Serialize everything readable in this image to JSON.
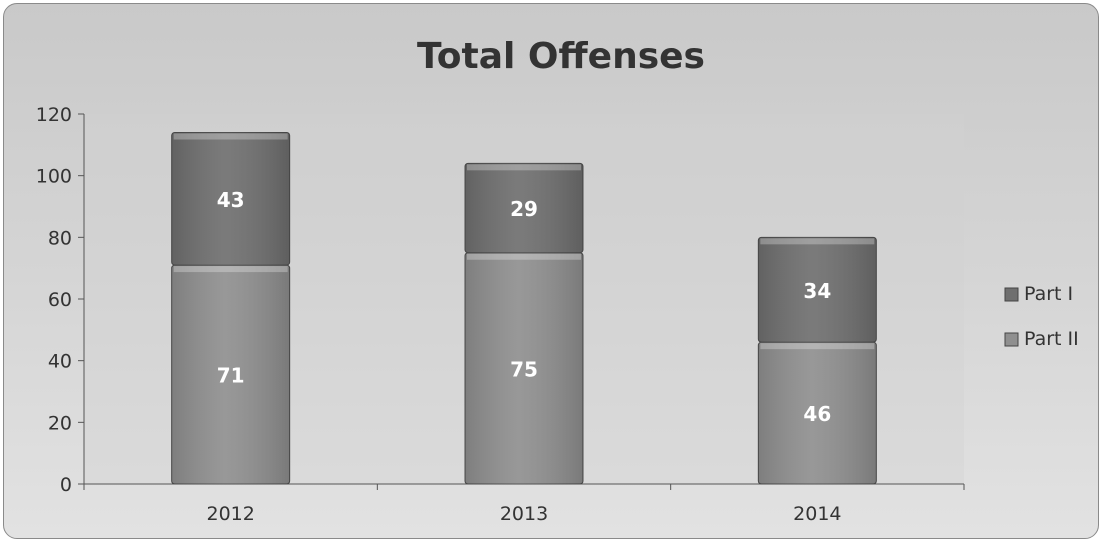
{
  "chart_data": {
    "type": "bar",
    "stacked": true,
    "title": "Total Offenses",
    "categories": [
      "2012",
      "2013",
      "2014"
    ],
    "series": [
      {
        "name": "Part II",
        "values": [
          71,
          75,
          46
        ],
        "color": "#8f8f8f"
      },
      {
        "name": "Part I",
        "values": [
          43,
          29,
          34
        ],
        "color": "#6f6f6f"
      }
    ],
    "ylim": [
      0,
      120
    ],
    "yticks": [
      0,
      20,
      40,
      60,
      80,
      100,
      120
    ],
    "legend": {
      "position": "right",
      "items": [
        "Part I",
        "Part II"
      ]
    },
    "grid": false
  }
}
